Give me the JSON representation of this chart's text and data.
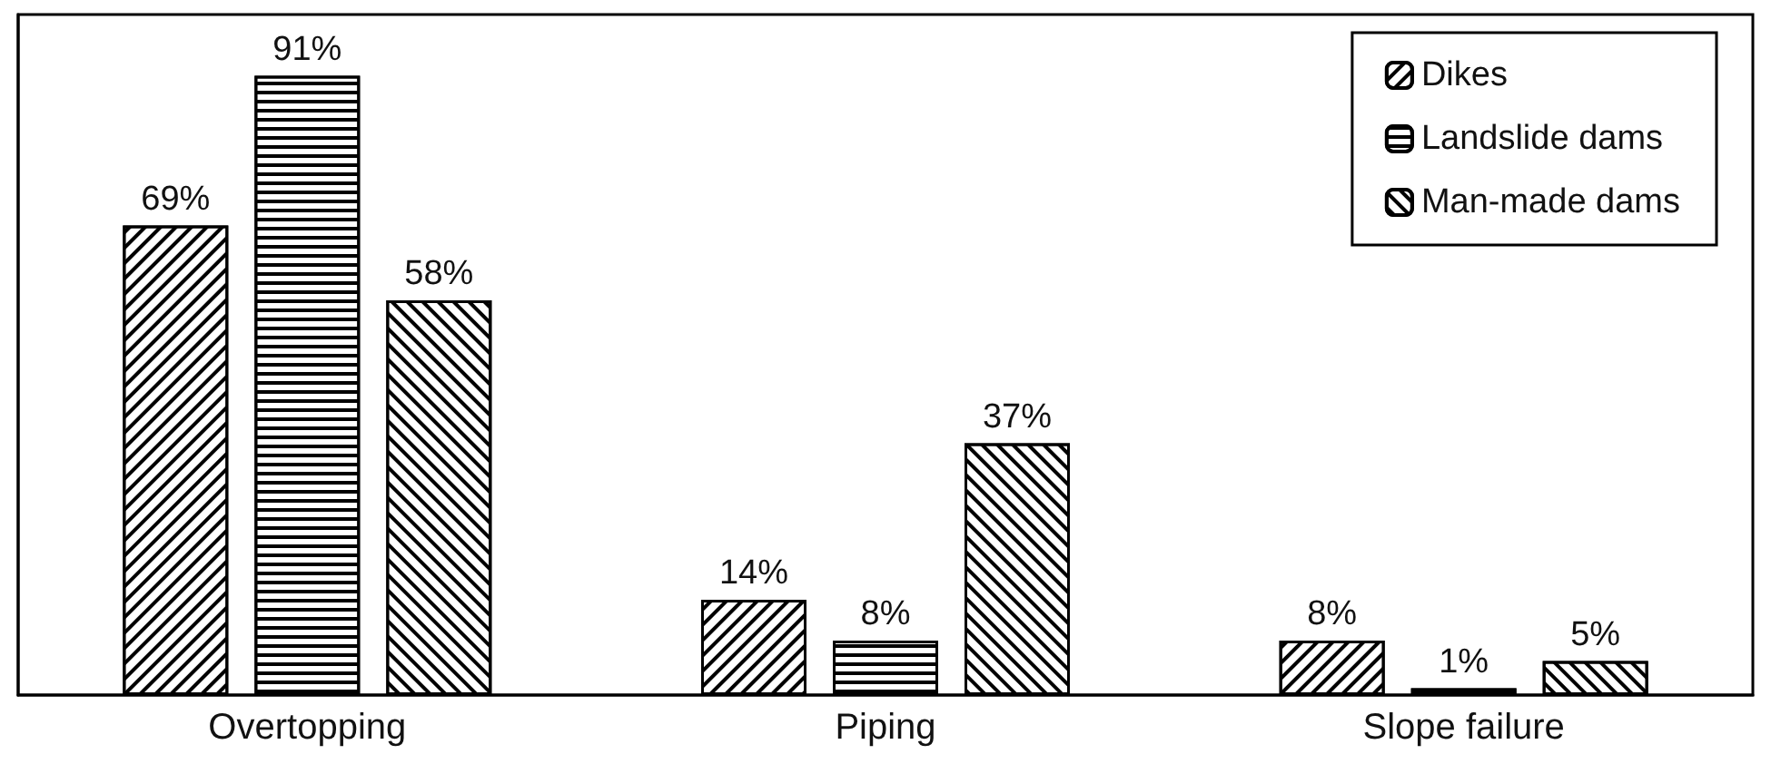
{
  "chart_data": {
    "type": "bar",
    "categories": [
      "Overtopping",
      "Piping",
      "Slope failure"
    ],
    "series": [
      {
        "name": "Dikes",
        "color": "#000000",
        "values": [
          69,
          14,
          8
        ],
        "value_labels": [
          "69%",
          "14%",
          "8%"
        ]
      },
      {
        "name": "Landslide dams",
        "color": "#000000",
        "values": [
          91,
          8,
          1
        ],
        "value_labels": [
          "91%",
          "8%",
          "1%"
        ]
      },
      {
        "name": "Man-made dams",
        "color": "#000000",
        "values": [
          58,
          37,
          5
        ],
        "value_labels": [
          "58%",
          "37%",
          "5%"
        ]
      }
    ],
    "legend": "top right",
    "grid": false
  }
}
